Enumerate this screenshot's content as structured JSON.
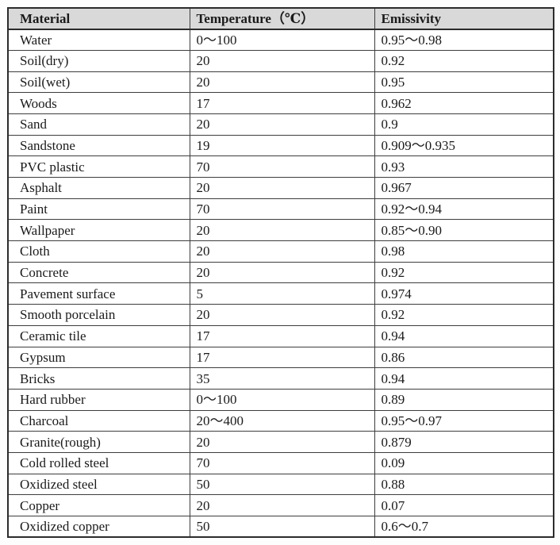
{
  "table": {
    "columns": [
      {
        "key": "material",
        "label": "Material"
      },
      {
        "key": "temperature",
        "label": "Temperature（℃）"
      },
      {
        "key": "emissivity",
        "label": "Emissivity"
      }
    ],
    "rows": [
      [
        "Water",
        "0～100",
        "0.95～0.98"
      ],
      [
        "Soil(dry)",
        "20",
        "0.92"
      ],
      [
        "Soil(wet)",
        "20",
        "0.95"
      ],
      [
        "Woods",
        "17",
        "0.962"
      ],
      [
        "Sand",
        "20",
        "0.9"
      ],
      [
        "Sandstone",
        "19",
        "0.909～0.935"
      ],
      [
        "PVC plastic",
        "70",
        "0.93"
      ],
      [
        "Asphalt",
        "20",
        "0.967"
      ],
      [
        "Paint",
        "70",
        "0.92～0.94"
      ],
      [
        "Wallpaper",
        "20",
        "0.85～0.90"
      ],
      [
        "Cloth",
        "20",
        "0.98"
      ],
      [
        "Concrete",
        "20",
        "0.92"
      ],
      [
        "Pavement surface",
        "5",
        "0.974"
      ],
      [
        "Smooth porcelain",
        "20",
        "0.92"
      ],
      [
        "Ceramic tile",
        "17",
        "0.94"
      ],
      [
        "Gypsum",
        "17",
        "0.86"
      ],
      [
        "Bricks",
        "35",
        "0.94"
      ],
      [
        "Hard rubber",
        "0～100",
        "0.89"
      ],
      [
        "Charcoal",
        "20～400",
        "0.95～0.97"
      ],
      [
        "Granite(rough)",
        "20",
        "0.879"
      ],
      [
        "Cold rolled steel",
        "70",
        "0.09"
      ],
      [
        "Oxidized steel",
        "50",
        "0.88"
      ],
      [
        "Copper",
        "20",
        "0.07"
      ],
      [
        "Oxidized copper",
        "50",
        "0.6～0.7"
      ]
    ]
  },
  "colors": {
    "header_background": "#d9d9d9",
    "border": "#2b2b2b",
    "text": "#1a1a1a"
  }
}
